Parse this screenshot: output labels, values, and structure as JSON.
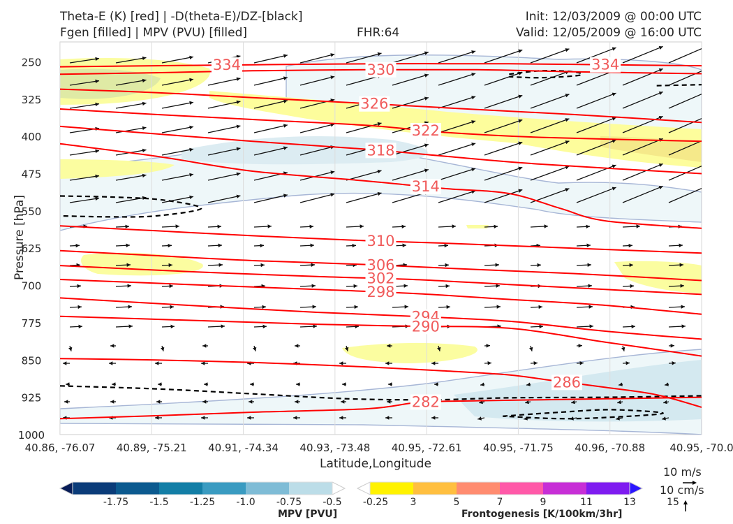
{
  "header": {
    "title_line1": "Theta-E (K) [red] | -D(theta-E)/DZ-[black]",
    "title_line2": "Fgen [filled] | MPV (PVU) [filled]",
    "fhr": "FHR:64",
    "init": "Init: 12/03/2009 @ 00:00 UTC",
    "valid": "Valid: 12/05/2009 @ 16:00 UTC"
  },
  "chart_data": {
    "type": "cross-section",
    "xlabel": "Latitude,Longitude",
    "ylabel": "Pressure [hPa]",
    "x_ticks": [
      "40.86, -76.07",
      "40.89, -75.21",
      "40.91, -74.34",
      "40.93, -73.48",
      "40.95, -72.61",
      "40.95, -71.75",
      "40.96, -70.88",
      "40.95, -70.0"
    ],
    "y_ticks": [
      250,
      325,
      400,
      475,
      550,
      625,
      700,
      775,
      850,
      925,
      1000
    ],
    "ylim": [
      1000,
      210
    ],
    "theta_e_contours": [
      {
        "value": "334",
        "color": "#ff0000",
        "pts": [
          [
            0,
            260
          ],
          [
            15,
            258
          ],
          [
            30,
            256
          ],
          [
            50,
            254
          ],
          [
            70,
            254
          ],
          [
            85,
            256
          ],
          [
            100,
            258
          ]
        ]
      },
      {
        "value": "330",
        "color": "#ff0000",
        "pts": [
          [
            0,
            275
          ],
          [
            15,
            272
          ],
          [
            30,
            268
          ],
          [
            48,
            266
          ],
          [
            65,
            266
          ],
          [
            80,
            270
          ],
          [
            100,
            274
          ]
        ]
      },
      {
        "value": "326",
        "color": "#ff0000",
        "pts": [
          [
            0,
            305
          ],
          [
            15,
            312
          ],
          [
            30,
            322
          ],
          [
            48,
            334
          ],
          [
            65,
            346
          ],
          [
            80,
            356
          ],
          [
            100,
            372
          ]
        ]
      },
      {
        "value": "322",
        "color": "#ff0000",
        "pts": [
          [
            0,
            345
          ],
          [
            15,
            356
          ],
          [
            30,
            366
          ],
          [
            48,
            378
          ],
          [
            60,
            392
          ],
          [
            75,
            402
          ],
          [
            100,
            410
          ]
        ]
      },
      {
        "value": "318",
        "color": "#ff0000",
        "pts": [
          [
            0,
            380
          ],
          [
            15,
            395
          ],
          [
            30,
            410
          ],
          [
            48,
            426
          ],
          [
            60,
            440
          ],
          [
            75,
            456
          ],
          [
            100,
            475
          ]
        ]
      },
      {
        "value": "314",
        "color": "#ff0000",
        "pts": [
          [
            0,
            415
          ],
          [
            15,
            440
          ],
          [
            30,
            470
          ],
          [
            48,
            490
          ],
          [
            60,
            505
          ],
          [
            70,
            515
          ],
          [
            78,
            545
          ],
          [
            85,
            570
          ],
          [
            100,
            585
          ]
        ]
      },
      {
        "value": "310",
        "color": "#ff0000",
        "pts": [
          [
            0,
            580
          ],
          [
            15,
            590
          ],
          [
            30,
            600
          ],
          [
            48,
            610
          ],
          [
            60,
            615
          ],
          [
            80,
            625
          ],
          [
            100,
            635
          ]
        ]
      },
      {
        "value": "306",
        "color": "#ff0000",
        "pts": [
          [
            0,
            630
          ],
          [
            15,
            640
          ],
          [
            30,
            650
          ],
          [
            48,
            658
          ],
          [
            65,
            668
          ],
          [
            80,
            676
          ],
          [
            100,
            690
          ]
        ]
      },
      {
        "value": "302",
        "color": "#ff0000",
        "pts": [
          [
            0,
            660
          ],
          [
            20,
            672
          ],
          [
            40,
            682
          ],
          [
            55,
            688
          ],
          [
            70,
            698
          ],
          [
            85,
            708
          ],
          [
            100,
            718
          ]
        ]
      },
      {
        "value": "298",
        "color": "#ff0000",
        "pts": [
          [
            0,
            688
          ],
          [
            20,
            698
          ],
          [
            40,
            708
          ],
          [
            55,
            716
          ],
          [
            70,
            728
          ],
          [
            85,
            740
          ],
          [
            100,
            758
          ]
        ]
      },
      {
        "value": "294",
        "color": "#ff0000",
        "pts": [
          [
            0,
            725
          ],
          [
            20,
            740
          ],
          [
            40,
            754
          ],
          [
            55,
            762
          ],
          [
            70,
            772
          ],
          [
            85,
            792
          ],
          [
            100,
            808
          ]
        ]
      },
      {
        "value": "290",
        "color": "#ff0000",
        "pts": [
          [
            0,
            762
          ],
          [
            20,
            770
          ],
          [
            40,
            778
          ],
          [
            55,
            782
          ],
          [
            70,
            786
          ],
          [
            85,
            814
          ],
          [
            100,
            842
          ]
        ]
      },
      {
        "value": "286",
        "color": "#ff0000",
        "pts": [
          [
            0,
            847
          ],
          [
            15,
            850
          ],
          [
            30,
            855
          ],
          [
            48,
            864
          ],
          [
            60,
            872
          ],
          [
            70,
            880
          ],
          [
            76,
            890
          ],
          [
            85,
            905
          ],
          [
            93,
            920
          ],
          [
            100,
            945
          ]
        ]
      },
      {
        "value": "282",
        "color": "#ff0000",
        "pts": [
          [
            0,
            968
          ],
          [
            15,
            962
          ],
          [
            30,
            955
          ],
          [
            48,
            948
          ],
          [
            56,
            935
          ],
          [
            65,
            932
          ],
          [
            75,
            930
          ],
          [
            85,
            928
          ],
          [
            100,
            925
          ]
        ]
      }
    ],
    "stability_contours_dashed": [
      {
        "color": "#000000",
        "pts": [
          [
            0,
            902
          ],
          [
            15,
            908
          ],
          [
            30,
            918
          ],
          [
            45,
            928
          ],
          [
            58,
            930
          ],
          [
            70,
            926
          ],
          [
            85,
            925
          ],
          [
            100,
            922
          ]
        ]
      },
      {
        "color": "#000000",
        "pts": [
          [
            0,
            520
          ],
          [
            8,
            522
          ],
          [
            16,
            528
          ],
          [
            22,
            545
          ],
          [
            15,
            560
          ],
          [
            8,
            562
          ],
          [
            0,
            560
          ]
        ]
      },
      {
        "color": "#000000",
        "pts": [
          [
            70,
            275
          ],
          [
            75,
            268
          ],
          [
            80,
            270
          ],
          [
            81,
            277
          ],
          [
            75,
            282
          ],
          [
            70,
            280
          ]
        ]
      },
      {
        "color": "#000000",
        "pts": [
          [
            69,
            963
          ],
          [
            78,
            955
          ],
          [
            86,
            950
          ],
          [
            94,
            957
          ],
          [
            86,
            965
          ],
          [
            78,
            968
          ],
          [
            69,
            963
          ]
        ]
      },
      {
        "color": "#000000",
        "pts": [
          [
            93,
            298
          ],
          [
            100,
            296
          ]
        ]
      }
    ],
    "colorbar_mpv": {
      "label": "MPV [PVU]",
      "ticks": [
        "-1.75",
        "-1.5",
        "-1.25",
        "-1.0",
        "-0.75",
        "-0.5",
        "-0.25"
      ],
      "colors": [
        "#081d58",
        "#0b3c79",
        "#0c5a8f",
        "#137ea6",
        "#3a9bc1",
        "#7fbcd6",
        "#bcdde8",
        "#ffffff"
      ]
    },
    "colorbar_fgen": {
      "label": "Frontogenesis [K/100km/3hr]",
      "ticks": [
        "3",
        "5",
        "7",
        "9",
        "11",
        "13",
        "15"
      ],
      "colors": [
        "#ffffff",
        "#fff200",
        "#ffbf40",
        "#ff8c70",
        "#ff59a8",
        "#c72fd6",
        "#7f1cf0",
        "#2b16ff"
      ]
    },
    "wind_reference": {
      "label_top": "10 m/s",
      "label_bottom": "10 cm/s"
    }
  }
}
